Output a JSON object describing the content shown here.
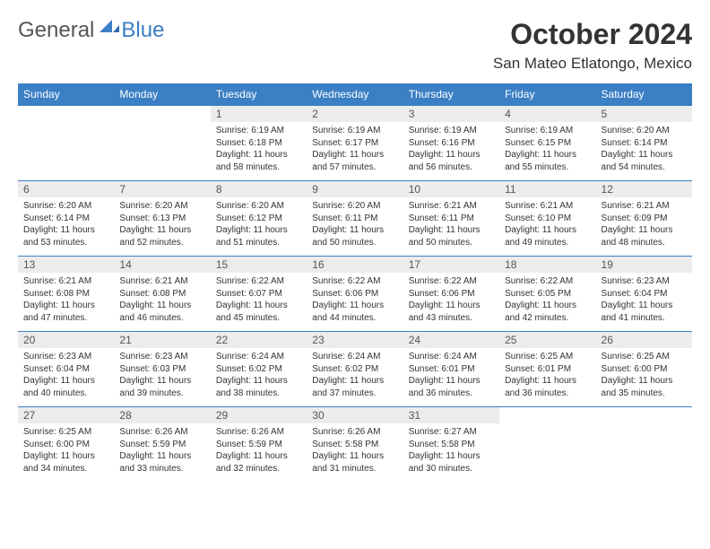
{
  "brand": {
    "part1": "General",
    "part2": "Blue"
  },
  "title": "October 2024",
  "location": "San Mateo Etlatongo, Mexico",
  "colors": {
    "accent": "#3b7fc4",
    "header_bg": "#3b7fc4",
    "daynum_bg": "#ececec",
    "text": "#333333"
  },
  "day_headers": [
    "Sunday",
    "Monday",
    "Tuesday",
    "Wednesday",
    "Thursday",
    "Friday",
    "Saturday"
  ],
  "weeks": [
    [
      null,
      null,
      {
        "n": "1",
        "sr": "Sunrise: 6:19 AM",
        "ss": "Sunset: 6:18 PM",
        "dl1": "Daylight: 11 hours",
        "dl2": "and 58 minutes."
      },
      {
        "n": "2",
        "sr": "Sunrise: 6:19 AM",
        "ss": "Sunset: 6:17 PM",
        "dl1": "Daylight: 11 hours",
        "dl2": "and 57 minutes."
      },
      {
        "n": "3",
        "sr": "Sunrise: 6:19 AM",
        "ss": "Sunset: 6:16 PM",
        "dl1": "Daylight: 11 hours",
        "dl2": "and 56 minutes."
      },
      {
        "n": "4",
        "sr": "Sunrise: 6:19 AM",
        "ss": "Sunset: 6:15 PM",
        "dl1": "Daylight: 11 hours",
        "dl2": "and 55 minutes."
      },
      {
        "n": "5",
        "sr": "Sunrise: 6:20 AM",
        "ss": "Sunset: 6:14 PM",
        "dl1": "Daylight: 11 hours",
        "dl2": "and 54 minutes."
      }
    ],
    [
      {
        "n": "6",
        "sr": "Sunrise: 6:20 AM",
        "ss": "Sunset: 6:14 PM",
        "dl1": "Daylight: 11 hours",
        "dl2": "and 53 minutes."
      },
      {
        "n": "7",
        "sr": "Sunrise: 6:20 AM",
        "ss": "Sunset: 6:13 PM",
        "dl1": "Daylight: 11 hours",
        "dl2": "and 52 minutes."
      },
      {
        "n": "8",
        "sr": "Sunrise: 6:20 AM",
        "ss": "Sunset: 6:12 PM",
        "dl1": "Daylight: 11 hours",
        "dl2": "and 51 minutes."
      },
      {
        "n": "9",
        "sr": "Sunrise: 6:20 AM",
        "ss": "Sunset: 6:11 PM",
        "dl1": "Daylight: 11 hours",
        "dl2": "and 50 minutes."
      },
      {
        "n": "10",
        "sr": "Sunrise: 6:21 AM",
        "ss": "Sunset: 6:11 PM",
        "dl1": "Daylight: 11 hours",
        "dl2": "and 50 minutes."
      },
      {
        "n": "11",
        "sr": "Sunrise: 6:21 AM",
        "ss": "Sunset: 6:10 PM",
        "dl1": "Daylight: 11 hours",
        "dl2": "and 49 minutes."
      },
      {
        "n": "12",
        "sr": "Sunrise: 6:21 AM",
        "ss": "Sunset: 6:09 PM",
        "dl1": "Daylight: 11 hours",
        "dl2": "and 48 minutes."
      }
    ],
    [
      {
        "n": "13",
        "sr": "Sunrise: 6:21 AM",
        "ss": "Sunset: 6:08 PM",
        "dl1": "Daylight: 11 hours",
        "dl2": "and 47 minutes."
      },
      {
        "n": "14",
        "sr": "Sunrise: 6:21 AM",
        "ss": "Sunset: 6:08 PM",
        "dl1": "Daylight: 11 hours",
        "dl2": "and 46 minutes."
      },
      {
        "n": "15",
        "sr": "Sunrise: 6:22 AM",
        "ss": "Sunset: 6:07 PM",
        "dl1": "Daylight: 11 hours",
        "dl2": "and 45 minutes."
      },
      {
        "n": "16",
        "sr": "Sunrise: 6:22 AM",
        "ss": "Sunset: 6:06 PM",
        "dl1": "Daylight: 11 hours",
        "dl2": "and 44 minutes."
      },
      {
        "n": "17",
        "sr": "Sunrise: 6:22 AM",
        "ss": "Sunset: 6:06 PM",
        "dl1": "Daylight: 11 hours",
        "dl2": "and 43 minutes."
      },
      {
        "n": "18",
        "sr": "Sunrise: 6:22 AM",
        "ss": "Sunset: 6:05 PM",
        "dl1": "Daylight: 11 hours",
        "dl2": "and 42 minutes."
      },
      {
        "n": "19",
        "sr": "Sunrise: 6:23 AM",
        "ss": "Sunset: 6:04 PM",
        "dl1": "Daylight: 11 hours",
        "dl2": "and 41 minutes."
      }
    ],
    [
      {
        "n": "20",
        "sr": "Sunrise: 6:23 AM",
        "ss": "Sunset: 6:04 PM",
        "dl1": "Daylight: 11 hours",
        "dl2": "and 40 minutes."
      },
      {
        "n": "21",
        "sr": "Sunrise: 6:23 AM",
        "ss": "Sunset: 6:03 PM",
        "dl1": "Daylight: 11 hours",
        "dl2": "and 39 minutes."
      },
      {
        "n": "22",
        "sr": "Sunrise: 6:24 AM",
        "ss": "Sunset: 6:02 PM",
        "dl1": "Daylight: 11 hours",
        "dl2": "and 38 minutes."
      },
      {
        "n": "23",
        "sr": "Sunrise: 6:24 AM",
        "ss": "Sunset: 6:02 PM",
        "dl1": "Daylight: 11 hours",
        "dl2": "and 37 minutes."
      },
      {
        "n": "24",
        "sr": "Sunrise: 6:24 AM",
        "ss": "Sunset: 6:01 PM",
        "dl1": "Daylight: 11 hours",
        "dl2": "and 36 minutes."
      },
      {
        "n": "25",
        "sr": "Sunrise: 6:25 AM",
        "ss": "Sunset: 6:01 PM",
        "dl1": "Daylight: 11 hours",
        "dl2": "and 36 minutes."
      },
      {
        "n": "26",
        "sr": "Sunrise: 6:25 AM",
        "ss": "Sunset: 6:00 PM",
        "dl1": "Daylight: 11 hours",
        "dl2": "and 35 minutes."
      }
    ],
    [
      {
        "n": "27",
        "sr": "Sunrise: 6:25 AM",
        "ss": "Sunset: 6:00 PM",
        "dl1": "Daylight: 11 hours",
        "dl2": "and 34 minutes."
      },
      {
        "n": "28",
        "sr": "Sunrise: 6:26 AM",
        "ss": "Sunset: 5:59 PM",
        "dl1": "Daylight: 11 hours",
        "dl2": "and 33 minutes."
      },
      {
        "n": "29",
        "sr": "Sunrise: 6:26 AM",
        "ss": "Sunset: 5:59 PM",
        "dl1": "Daylight: 11 hours",
        "dl2": "and 32 minutes."
      },
      {
        "n": "30",
        "sr": "Sunrise: 6:26 AM",
        "ss": "Sunset: 5:58 PM",
        "dl1": "Daylight: 11 hours",
        "dl2": "and 31 minutes."
      },
      {
        "n": "31",
        "sr": "Sunrise: 6:27 AM",
        "ss": "Sunset: 5:58 PM",
        "dl1": "Daylight: 11 hours",
        "dl2": "and 30 minutes."
      },
      null,
      null
    ]
  ]
}
